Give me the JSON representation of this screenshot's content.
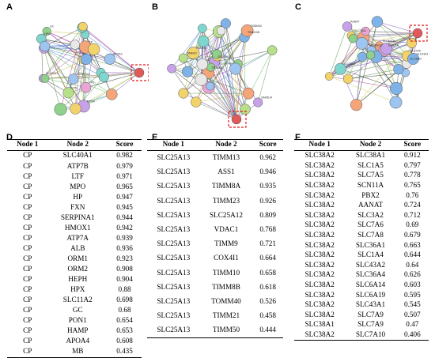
{
  "panels": {
    "A": {
      "letter": "A",
      "labels": [
        "GC",
        "SERPINA1",
        "MPO4",
        "PH1",
        "CP",
        "HPX",
        "APOA4",
        "FXN",
        "SLC40A1"
      ]
    },
    "B": {
      "letter": "B",
      "labels": [
        "SAMD14",
        "TIMM10B",
        "PAM16",
        "TIMM29",
        "TIMM8A",
        "SLC25A13",
        "TOMM40"
      ]
    },
    "C": {
      "letter": "C",
      "labels": [
        "SLC38A1",
        "SLC38A2",
        "SLC6A14",
        "SLC7A5",
        "AANAT",
        "PBX2",
        "SCN11A",
        "SLC36A1",
        "SLC43A1"
      ]
    },
    "D": {
      "letter": "D",
      "headers": [
        "Node 1",
        "Node 2",
        "Score"
      ],
      "rows": [
        [
          "CP",
          "SLC40A1",
          "0.982"
        ],
        [
          "CP",
          "ATP7B",
          "0.979"
        ],
        [
          "CP",
          "LTF",
          "0.971"
        ],
        [
          "CP",
          "MPO",
          "0.965"
        ],
        [
          "CP",
          "HP",
          "0.947"
        ],
        [
          "CP",
          "FXN",
          "0.945"
        ],
        [
          "CP",
          "SERPINA1",
          "0.944"
        ],
        [
          "CP",
          "HMOX1",
          "0.942"
        ],
        [
          "CP",
          "ATP7A",
          "0.939"
        ],
        [
          "CP",
          "ALB",
          "0.936"
        ],
        [
          "CP",
          "ORM1",
          "0.923"
        ],
        [
          "CP",
          "ORM2",
          "0.908"
        ],
        [
          "CP",
          "HEPH",
          "0.904"
        ],
        [
          "CP",
          "HPX",
          "0.88"
        ],
        [
          "CP",
          "SLC11A2",
          "0.698"
        ],
        [
          "CP",
          "GC",
          "0.68"
        ],
        [
          "CP",
          "PON1",
          "0.654"
        ],
        [
          "CP",
          "HAMP",
          "0.653"
        ],
        [
          "CP",
          "APOA4",
          "0.608"
        ],
        [
          "CP",
          "MB",
          "0.435"
        ]
      ]
    },
    "E": {
      "letter": "E",
      "headers": [
        "Node 1",
        "Node 2",
        "Score"
      ],
      "rows": [
        [
          "SLC25A13",
          "TIMM13",
          "0.962"
        ],
        [
          "SLC25A13",
          "ASS1",
          "0.946"
        ],
        [
          "SLC25A13",
          "TIMM8A",
          "0.935"
        ],
        [
          "SLC25A13",
          "TIMM23",
          "0.926"
        ],
        [
          "SLC25A13",
          "SLC25A12",
          "0.809"
        ],
        [
          "SLC25A13",
          "VDAC1",
          "0.768"
        ],
        [
          "SLC25A13",
          "TIMM9",
          "0.721"
        ],
        [
          "SLC25A13",
          "COX4I1",
          "0.664"
        ],
        [
          "SLC25A13",
          "TIMM10",
          "0.658"
        ],
        [
          "SLC25A13",
          "TIMM8B",
          "0.618"
        ],
        [
          "SLC25A13",
          "TOMM40",
          "0.526"
        ],
        [
          "SLC25A13",
          "TIMM21",
          "0.458"
        ],
        [
          "SLC25A13",
          "TIMM50",
          "0.444"
        ]
      ]
    },
    "F": {
      "letter": "F",
      "headers": [
        "Node 1",
        "Node 2",
        "Score"
      ],
      "rows": [
        [
          "SLC38A2",
          "SLC38A1",
          "0.912"
        ],
        [
          "SLC38A2",
          "SLC1A5",
          "0.797"
        ],
        [
          "SLC38A2",
          "SLC7A5",
          "0.778"
        ],
        [
          "SLC38A2",
          "SCN11A",
          "0.765"
        ],
        [
          "SLC38A2",
          "PBX2",
          "0.76"
        ],
        [
          "SLC38A2",
          "AANAT",
          "0.724"
        ],
        [
          "SLC38A2",
          "SLC3A2",
          "0.712"
        ],
        [
          "SLC38A2",
          "SLC7A6",
          "0.69"
        ],
        [
          "SLC38A2",
          "SLC7A8",
          "0.679"
        ],
        [
          "SLC38A2",
          "SLC36A1",
          "0.663"
        ],
        [
          "SLC38A2",
          "SLC1A4",
          "0.644"
        ],
        [
          "SLC38A2",
          "SLC43A2",
          "0.64"
        ],
        [
          "SLC38A2",
          "SLC36A4",
          "0.626"
        ],
        [
          "SLC38A2",
          "SLC6A14",
          "0.603"
        ],
        [
          "SLC38A2",
          "SLC6A19",
          "0.595"
        ],
        [
          "SLC38A2",
          "SLC43A1",
          "0.545"
        ],
        [
          "SLC38A2",
          "SLC7A9",
          "0.507"
        ],
        [
          "SLC38A1",
          "SLC7A9",
          "0.47"
        ],
        [
          "SLC38A2",
          "SLC7A10",
          "0.406"
        ]
      ]
    }
  }
}
